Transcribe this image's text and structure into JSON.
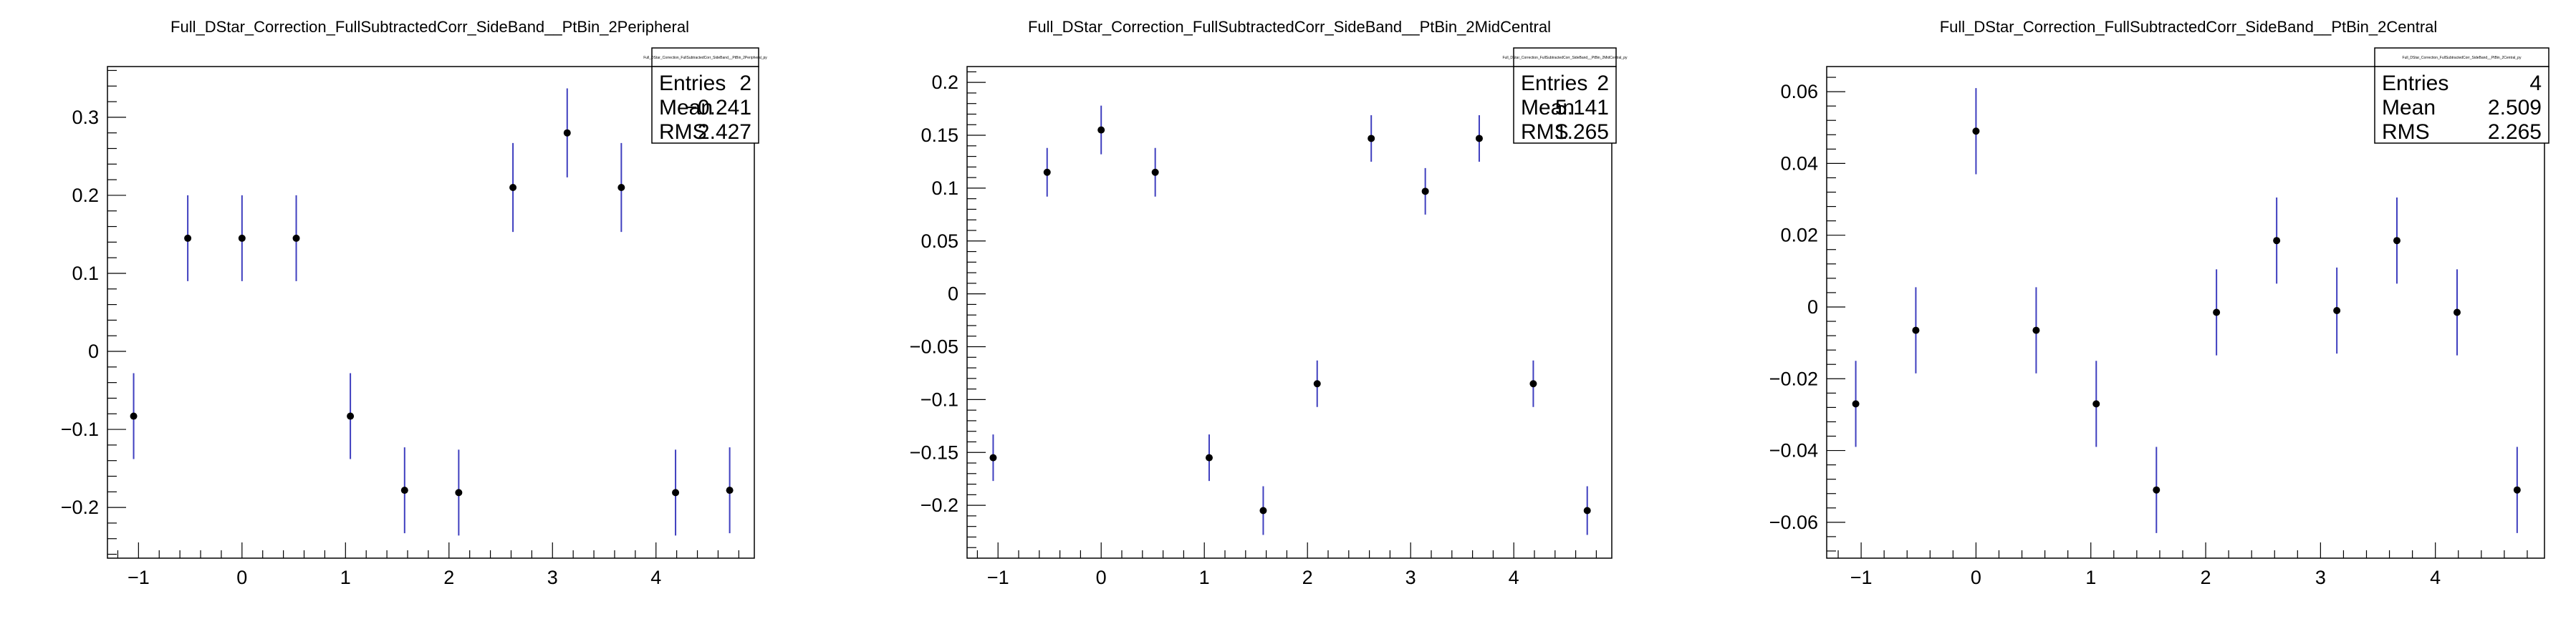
{
  "panels": [
    {
      "title": "Full_DStar_Correction_FullSubtractedCorr_SideBand__PtBin_2Peripheral",
      "stats": {
        "title": "Full_DStar_Correction_FullSubtractedCorr_SideBand__PtBin_2Peripheral_py",
        "entries_label": "Entries",
        "entries": "2",
        "mean_label": "Mean",
        "mean": "−0.241",
        "rms_label": "RMS",
        "rms": "2.427"
      }
    },
    {
      "title": "Full_DStar_Correction_FullSubtractedCorr_SideBand__PtBin_2MidCentral",
      "stats": {
        "title": "Full_DStar_Correction_FullSubtractedCorr_SideBand__PtBin_2MidCentral_py",
        "entries_label": "Entries",
        "entries": "2",
        "mean_label": "Mean",
        "mean": "5.141",
        "rms_label": "RMS",
        "rms": "1.265"
      }
    },
    {
      "title": "Full_DStar_Correction_FullSubtractedCorr_SideBand__PtBin_2Central",
      "stats": {
        "title": "Full_DStar_Correction_FullSubtractedCorr_SideBand__PtBin_2Central_py",
        "entries_label": "Entries",
        "entries": "4",
        "mean_label": "Mean",
        "mean": "2.509",
        "rms_label": "RMS",
        "rms": "2.265"
      }
    }
  ],
  "colors": {
    "marker": "#000000",
    "error_bar": "#3f3fbf",
    "axis": "#000000"
  },
  "chart_data": [
    {
      "type": "scatter",
      "xlim": [
        -1.3,
        4.95
      ],
      "ylim": [
        -0.265,
        0.365
      ],
      "x_ticks": [
        -1,
        0,
        1,
        2,
        3,
        4
      ],
      "y_ticks": [
        -0.2,
        -0.1,
        0,
        0.1,
        0.2,
        0.3
      ],
      "y_tick_labels": [
        "−0.2",
        "−0.1",
        "0",
        "0.1",
        "0.2",
        "0.3"
      ],
      "x_tick_labels": [
        "−1",
        "0",
        "1",
        "2",
        "3",
        "4"
      ],
      "grid": false,
      "x": [
        -1.047,
        -0.524,
        0.0,
        0.524,
        1.047,
        1.571,
        2.094,
        2.618,
        3.142,
        3.665,
        4.189,
        4.712
      ],
      "y": [
        -0.083,
        0.145,
        0.145,
        0.145,
        -0.083,
        -0.178,
        -0.181,
        0.21,
        0.28,
        0.21,
        -0.181,
        -0.178
      ],
      "yerr": [
        0.055,
        0.055,
        0.055,
        0.055,
        0.055,
        0.055,
        0.055,
        0.057,
        0.057,
        0.057,
        0.055,
        0.055
      ]
    },
    {
      "type": "scatter",
      "xlim": [
        -1.3,
        4.95
      ],
      "ylim": [
        -0.25,
        0.215
      ],
      "x_ticks": [
        -1,
        0,
        1,
        2,
        3,
        4
      ],
      "y_ticks": [
        -0.2,
        -0.15,
        -0.1,
        -0.05,
        0,
        0.05,
        0.1,
        0.15,
        0.2
      ],
      "y_tick_labels": [
        "−0.2",
        "−0.15",
        "−0.1",
        "−0.05",
        "0",
        "0.05",
        "0.1",
        "0.15",
        "0.2"
      ],
      "x_tick_labels": [
        "−1",
        "0",
        "1",
        "2",
        "3",
        "4"
      ],
      "grid": false,
      "x": [
        -1.047,
        -0.524,
        0.0,
        0.524,
        1.047,
        1.571,
        2.094,
        2.618,
        3.142,
        3.665,
        4.189,
        4.712
      ],
      "y": [
        -0.155,
        0.115,
        0.155,
        0.115,
        -0.155,
        -0.205,
        -0.085,
        0.147,
        0.097,
        0.147,
        -0.085,
        -0.205
      ],
      "yerr": [
        0.022,
        0.023,
        0.023,
        0.023,
        0.022,
        0.023,
        0.022,
        0.022,
        0.022,
        0.022,
        0.022,
        0.023
      ]
    },
    {
      "type": "scatter",
      "xlim": [
        -1.3,
        4.95
      ],
      "ylim": [
        -0.07,
        0.067
      ],
      "x_ticks": [
        -1,
        0,
        1,
        2,
        3,
        4
      ],
      "y_ticks": [
        -0.06,
        -0.04,
        -0.02,
        0,
        0.02,
        0.04,
        0.06
      ],
      "y_tick_labels": [
        "−0.06",
        "−0.04",
        "−0.02",
        "0",
        "0.02",
        "0.04",
        "0.06"
      ],
      "x_tick_labels": [
        "−1",
        "0",
        "1",
        "2",
        "3",
        "4"
      ],
      "grid": false,
      "x": [
        -1.047,
        -0.524,
        0.0,
        0.524,
        1.047,
        1.571,
        2.094,
        2.618,
        3.142,
        3.665,
        4.189,
        4.712
      ],
      "y": [
        -0.027,
        -0.0065,
        0.049,
        -0.0065,
        -0.027,
        -0.051,
        -0.0015,
        0.0185,
        -0.001,
        0.0185,
        -0.0015,
        -0.051
      ],
      "yerr": [
        0.012,
        0.012,
        0.012,
        0.012,
        0.012,
        0.012,
        0.012,
        0.012,
        0.012,
        0.012,
        0.012,
        0.012
      ]
    }
  ]
}
